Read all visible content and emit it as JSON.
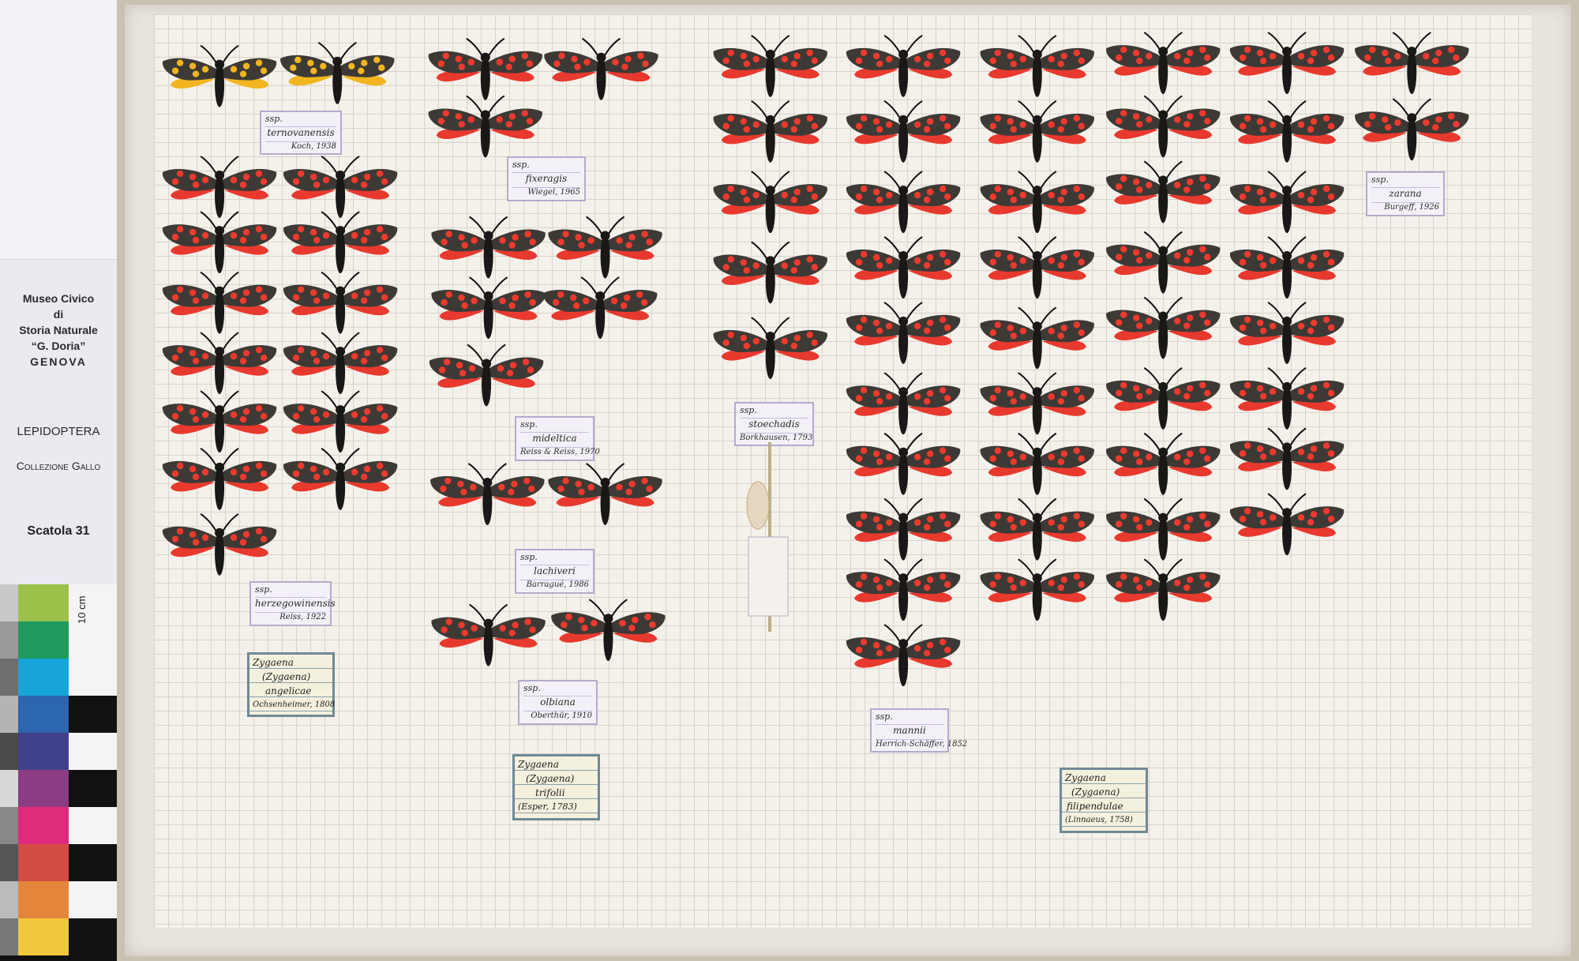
{
  "side_label": {
    "museum": [
      "Museo Civico",
      "di",
      "Storia Naturale",
      "“G. Doria”"
    ],
    "city": "GENOVA",
    "order": "LEPIDOPTERA",
    "collection": "Collezione Gallo",
    "box": "Scatola 31"
  },
  "color_chart": {
    "scale_label": "10 cm",
    "swatches": [
      "#9cc14b",
      "#1f9a5c",
      "#17a4d8",
      "#2c66b0",
      "#40408c",
      "#8b3c83",
      "#e02a7b",
      "#d44c46",
      "#e5853c",
      "#f1c73b"
    ]
  },
  "subspecies_labels": [
    {
      "prefix": "ssp.",
      "name": "ternovanensis",
      "author": "Koch, 1938"
    },
    {
      "prefix": "ssp.",
      "name": "fixeragis",
      "author": "Wiegel, 1965"
    },
    {
      "prefix": "ssp.",
      "name": "zarana",
      "author": "Burgeff, 1926"
    },
    {
      "prefix": "ssp.",
      "name": "mideltica",
      "author": "Reiss & Reiss, 1970"
    },
    {
      "prefix": "ssp.",
      "name": "stoechadis",
      "author": "Borkhausen, 1793"
    },
    {
      "prefix": "ssp.",
      "name": "lachiveri",
      "author": "Barragué, 1986"
    },
    {
      "prefix": "ssp.",
      "name": "herzegowinensis",
      "author": "Reiss, 1922"
    },
    {
      "prefix": "ssp.",
      "name": "olbiana",
      "author": "Oberthür, 1910"
    },
    {
      "prefix": "ssp.",
      "name": "mannii",
      "author": "Herrich-Schäffer, 1852"
    }
  ],
  "species_labels": [
    {
      "genus": "Zygaena",
      "subgenus": "(Zygaena)",
      "species": "angelicae",
      "author": "Ochsenheimer, 1808"
    },
    {
      "genus": "Zygaena",
      "subgenus": "(Zygaena)",
      "species": "trifolii",
      "author": "(Esper, 1783)"
    },
    {
      "genus": "Zygaena",
      "subgenus": "(Zygaena)",
      "species": "filipendulae",
      "author": "(Linnaeus, 1758)"
    }
  ],
  "colors": {
    "forewing": "#3d3a36",
    "hindwing": "#e8392e",
    "spot": "#ee3a2c",
    "yellow_spot": "#f2b51f",
    "body": "#1a1816"
  }
}
